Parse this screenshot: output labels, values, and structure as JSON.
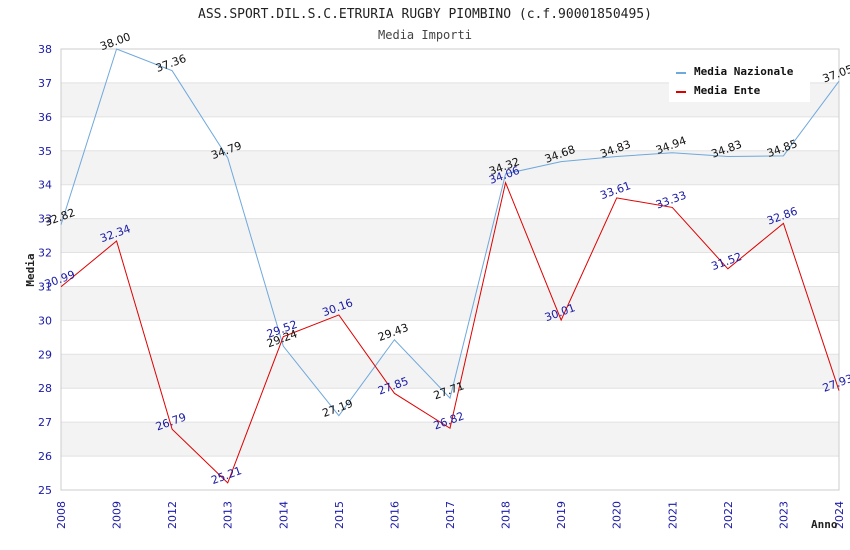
{
  "chart_data": {
    "type": "line",
    "title": "ASS.SPORT.DIL.S.C.ETRURIA RUGBY PIOMBINO (c.f.90001850495)",
    "subtitle": "Media Importi",
    "xlabel": "Anno",
    "ylabel": "Media",
    "categories": [
      "2008",
      "2009",
      "2012",
      "2013",
      "2014",
      "2015",
      "2016",
      "2017",
      "2018",
      "2019",
      "2020",
      "2021",
      "2022",
      "2023",
      "2024"
    ],
    "ylim": [
      25,
      38
    ],
    "yticks": [
      "25",
      "26",
      "27",
      "28",
      "29",
      "30",
      "31",
      "32",
      "33",
      "34",
      "35",
      "36",
      "37",
      "38"
    ],
    "grid": "horizontal alternating bands",
    "legend_position": "top-right",
    "series": [
      {
        "name": "Media Nazionale",
        "color": "#6fa8dc",
        "values": [
          32.82,
          38.0,
          37.36,
          34.79,
          29.24,
          27.19,
          29.43,
          27.71,
          34.32,
          34.68,
          34.83,
          34.94,
          34.83,
          34.85,
          37.05
        ],
        "labels": [
          "32.82",
          "38.00",
          "37.36",
          "34.79",
          "29.24",
          "27.19",
          "29.43",
          "27.71",
          "34.32",
          "34.68",
          "34.83",
          "34.94",
          "34.83",
          "34.85",
          "37.05"
        ],
        "label_color": "#111111"
      },
      {
        "name": "Media Ente",
        "color": "#dd0000",
        "values": [
          30.99,
          32.34,
          26.79,
          25.21,
          29.52,
          30.16,
          27.85,
          26.82,
          34.06,
          30.01,
          33.61,
          33.33,
          31.52,
          32.86,
          27.93
        ],
        "labels": [
          "30.99",
          "32.34",
          "26.79",
          "25.21",
          "29.52",
          "30.16",
          "27.85",
          "26.82",
          "34.06",
          "30.01",
          "33.61",
          "33.33",
          "31.52",
          "32.86",
          "27.93"
        ],
        "label_color": "#1a1aa6"
      }
    ]
  }
}
